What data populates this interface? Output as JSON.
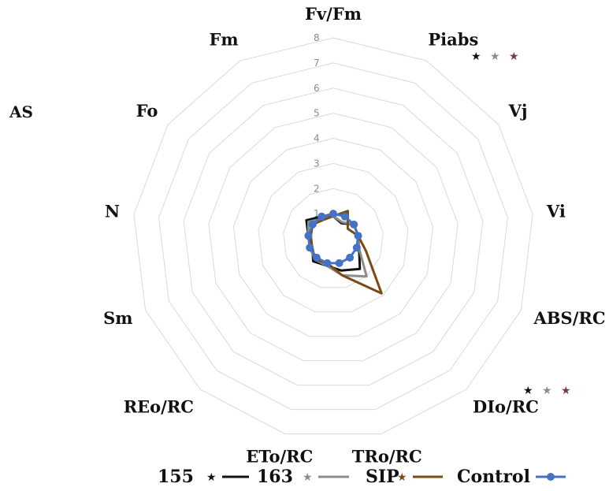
{
  "panel_label": "AS",
  "chart_data": {
    "type": "radar",
    "title": "",
    "axes": [
      "Fv/Fm",
      "Piabs",
      "Vj",
      "Vi",
      "ABS/RC",
      "DIo/RC",
      "TRo/RC",
      "ETo/RC",
      "REo/RC",
      "Sm",
      "N",
      "Fo",
      "Fm"
    ],
    "range": [
      0,
      8
    ],
    "ticks": [
      1,
      2,
      3,
      4,
      5,
      6,
      7,
      8
    ],
    "grid": true,
    "legend_position": "bottom",
    "series": [
      {
        "name": "155",
        "marker": "★",
        "color": "#111111",
        "values": [
          0.9,
          0.7,
          1.0,
          1.0,
          1.1,
          1.6,
          1.3,
          1.1,
          1.2,
          0.9,
          1.0,
          1.3,
          1.0
        ]
      },
      {
        "name": "163",
        "marker": "★",
        "color": "#8c8c8c",
        "values": [
          0.9,
          0.75,
          1.0,
          1.0,
          1.1,
          2.0,
          1.5,
          1.1,
          1.1,
          1.0,
          1.0,
          1.2,
          0.9
        ]
      },
      {
        "name": "SIP",
        "marker": "★",
        "color": "#7a4a17",
        "values": [
          0.9,
          1.25,
          0.7,
          1.0,
          1.4,
          2.9,
          1.5,
          1.0,
          1.1,
          0.9,
          0.9,
          1.0,
          0.85
        ]
      },
      {
        "name": "Control",
        "marker": "",
        "color": "#4472c4",
        "values": [
          1,
          1,
          1,
          1,
          1,
          1,
          1,
          1,
          1,
          1,
          1,
          1,
          1
        ]
      }
    ],
    "significance": [
      {
        "axis": "Piabs",
        "stars": [
          {
            "symbol": "★",
            "color": "#111111"
          },
          {
            "symbol": "★",
            "color": "#8c8c8c"
          },
          {
            "symbol": "★",
            "color": "#7a3b3b"
          }
        ]
      },
      {
        "axis": "DIo/RC",
        "stars": [
          {
            "symbol": "★",
            "color": "#111111"
          },
          {
            "symbol": "★",
            "color": "#8c8c8c"
          },
          {
            "symbol": "★",
            "color": "#7a3b3b"
          }
        ]
      }
    ]
  }
}
